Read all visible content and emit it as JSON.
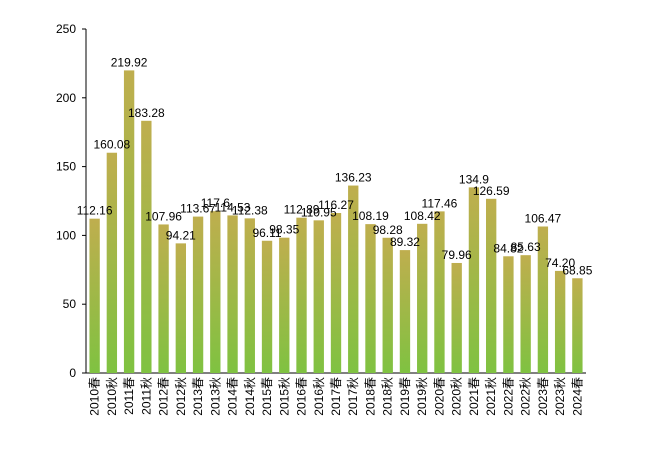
{
  "chart_data": {
    "type": "bar",
    "title": "",
    "xlabel": "",
    "ylabel": "",
    "ylim": [
      0,
      250
    ],
    "yticks": [
      "0",
      "50",
      "100",
      "150",
      "200",
      "250"
    ],
    "grid": false,
    "legend": "none",
    "categories": [
      "2010春",
      "2010秋",
      "2011春",
      "2011秋",
      "2012春",
      "2012秋",
      "2013春",
      "2013秋",
      "2014春",
      "2014秋",
      "2015春",
      "2015秋",
      "2016春",
      "2016秋",
      "2017春",
      "2017秋",
      "2018春",
      "2018秋",
      "2019春",
      "2019秋",
      "2020春",
      "2020秋",
      "2021春",
      "2021秋",
      "2022春",
      "2022秋",
      "2023春",
      "2023秋",
      "2024春"
    ],
    "values": [
      112.16,
      160.08,
      219.92,
      183.28,
      107.96,
      94.21,
      113.67,
      117.6,
      114.53,
      112.38,
      96.11,
      98.35,
      112.89,
      110.95,
      116.27,
      136.23,
      108.19,
      98.28,
      89.32,
      108.42,
      117.46,
      79.96,
      134.9,
      126.59,
      84.82,
      85.63,
      106.47,
      74.2,
      68.85
    ],
    "value_labels": [
      "112.16",
      "160.08",
      "219.92",
      "183.28",
      "107.96",
      "94.21",
      "113.67",
      "117.6",
      "114.53",
      "112.38",
      "96.11",
      "98.35",
      "112.89",
      "110.95",
      "116.27",
      "136.23",
      "108.19",
      "98.28",
      "89.32",
      "108.42",
      "117.46",
      "79.96",
      "134.9",
      "126.59",
      "84.82",
      "85.63",
      "106.47",
      "74.20",
      "68.85"
    ],
    "colors": {
      "bar_top": "#bfae4e",
      "bar_bottom": "#7fc241",
      "axis": "#000000"
    }
  }
}
